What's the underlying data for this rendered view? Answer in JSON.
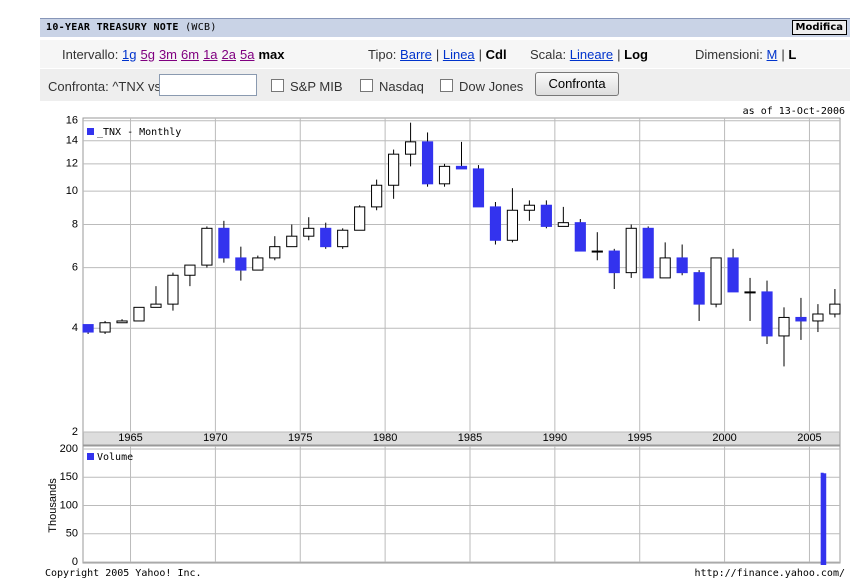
{
  "header": {
    "title": "10-YEAR TREASURY NOTE",
    "exchange": "(WCB)",
    "button": "Modifica"
  },
  "controls": {
    "range_label": "Intervallo:",
    "ranges": [
      "1g",
      "5g",
      "3m",
      "6m",
      "1a",
      "2a",
      "5a"
    ],
    "range_current": "max",
    "type_label": "Tipo:",
    "types": [
      "Barre",
      "Linea",
      "Cdl"
    ],
    "scale_label": "Scala:",
    "scales": [
      "Lineare",
      "Log"
    ],
    "size_label": "Dimensioni:",
    "sizes": [
      "M",
      "L"
    ],
    "compare_label": "Confronta: ^TNX vs",
    "indices": [
      "S&P MIB",
      "Nasdaq",
      "Dow Jones"
    ],
    "compare_button": "Confronta"
  },
  "as_of": "as of 13-Oct-2006",
  "footer": {
    "copyright": "Copyright 2005 Yahoo! Inc.",
    "url": "http://finance.yahoo.com/"
  },
  "chart_data": [
    {
      "type": "candlestick",
      "log_scale": true,
      "grid": true,
      "legend": "upper-left",
      "x": [
        1962,
        1963,
        1964,
        1965,
        1966,
        1967,
        1968,
        1969,
        1970,
        1971,
        1972,
        1973,
        1974,
        1975,
        1976,
        1977,
        1978,
        1979,
        1980,
        1981,
        1982,
        1983,
        1984,
        1985,
        1986,
        1987,
        1988,
        1989,
        1990,
        1991,
        1992,
        1993,
        1994,
        1995,
        1996,
        1997,
        1998,
        1999,
        2000,
        2001,
        2002,
        2003,
        2004,
        2005,
        2006
      ],
      "series": [
        {
          "name": "_TNX - Monthly",
          "color": "#3333ee",
          "up_color": "#ffffff",
          "open": [
            4.1,
            3.9,
            4.15,
            4.2,
            4.6,
            4.7,
            5.7,
            6.1,
            7.8,
            6.4,
            5.9,
            6.4,
            6.9,
            7.4,
            7.8,
            6.9,
            7.7,
            9.0,
            10.4,
            12.8,
            13.9,
            10.5,
            11.8,
            11.6,
            9.0,
            7.2,
            8.8,
            9.1,
            7.9,
            8.1,
            6.7,
            6.7,
            5.8,
            7.8,
            5.6,
            6.4,
            5.8,
            4.7,
            6.4,
            5.1,
            5.1,
            3.8,
            4.3,
            4.2,
            4.4
          ],
          "high": [
            4.1,
            4.2,
            4.25,
            4.6,
            5.3,
            5.8,
            6.1,
            7.9,
            8.2,
            6.9,
            6.5,
            7.4,
            8.0,
            8.4,
            8.1,
            7.8,
            9.1,
            10.8,
            13.2,
            15.8,
            14.8,
            12.0,
            13.9,
            11.9,
            9.3,
            10.2,
            9.4,
            9.4,
            9.0,
            8.3,
            7.6,
            6.8,
            8.0,
            7.9,
            7.1,
            7.0,
            5.9,
            6.4,
            6.8,
            5.6,
            5.5,
            4.6,
            4.9,
            4.7,
            5.2
          ],
          "low": [
            3.85,
            3.85,
            4.15,
            4.2,
            4.6,
            4.5,
            5.3,
            6.0,
            6.2,
            5.5,
            5.9,
            6.3,
            6.9,
            7.2,
            6.8,
            6.8,
            7.7,
            8.8,
            9.5,
            11.8,
            10.3,
            10.3,
            11.6,
            9.0,
            7.0,
            7.1,
            8.2,
            7.8,
            7.9,
            6.7,
            6.3,
            5.2,
            5.6,
            5.6,
            5.6,
            5.7,
            4.2,
            4.6,
            5.1,
            4.2,
            3.6,
            3.1,
            3.7,
            3.9,
            4.3
          ],
          "close": [
            3.9,
            4.15,
            4.2,
            4.6,
            4.7,
            5.7,
            6.1,
            7.8,
            6.4,
            5.9,
            6.4,
            6.9,
            7.4,
            7.8,
            6.9,
            7.7,
            9.0,
            10.4,
            12.8,
            13.9,
            10.5,
            11.8,
            11.6,
            9.0,
            7.2,
            8.8,
            9.1,
            7.9,
            8.1,
            6.7,
            6.7,
            5.8,
            7.8,
            5.6,
            6.4,
            5.8,
            4.7,
            6.4,
            5.1,
            5.1,
            3.8,
            4.3,
            4.2,
            4.4,
            4.7
          ]
        }
      ],
      "xlim": [
        1962.2,
        2006.8
      ],
      "xticks": [
        1965,
        1970,
        1975,
        1980,
        1985,
        1990,
        1995,
        2000,
        2005
      ],
      "ylim": [
        2,
        16.3
      ],
      "yticks": [
        2,
        4,
        6,
        8,
        10,
        12,
        14,
        16
      ]
    },
    {
      "type": "bar",
      "y_label": "Thousands",
      "grid": true,
      "legend": "upper-left",
      "x": [
        2005.75,
        2005.9
      ],
      "series": [
        {
          "name": "Volume",
          "color": "#3333ee",
          "values": [
            158,
            157
          ]
        }
      ],
      "xlim": [
        1962.2,
        2006.8
      ],
      "ylim": [
        0,
        200
      ],
      "yticks": [
        0,
        50,
        100,
        150,
        200
      ]
    }
  ]
}
